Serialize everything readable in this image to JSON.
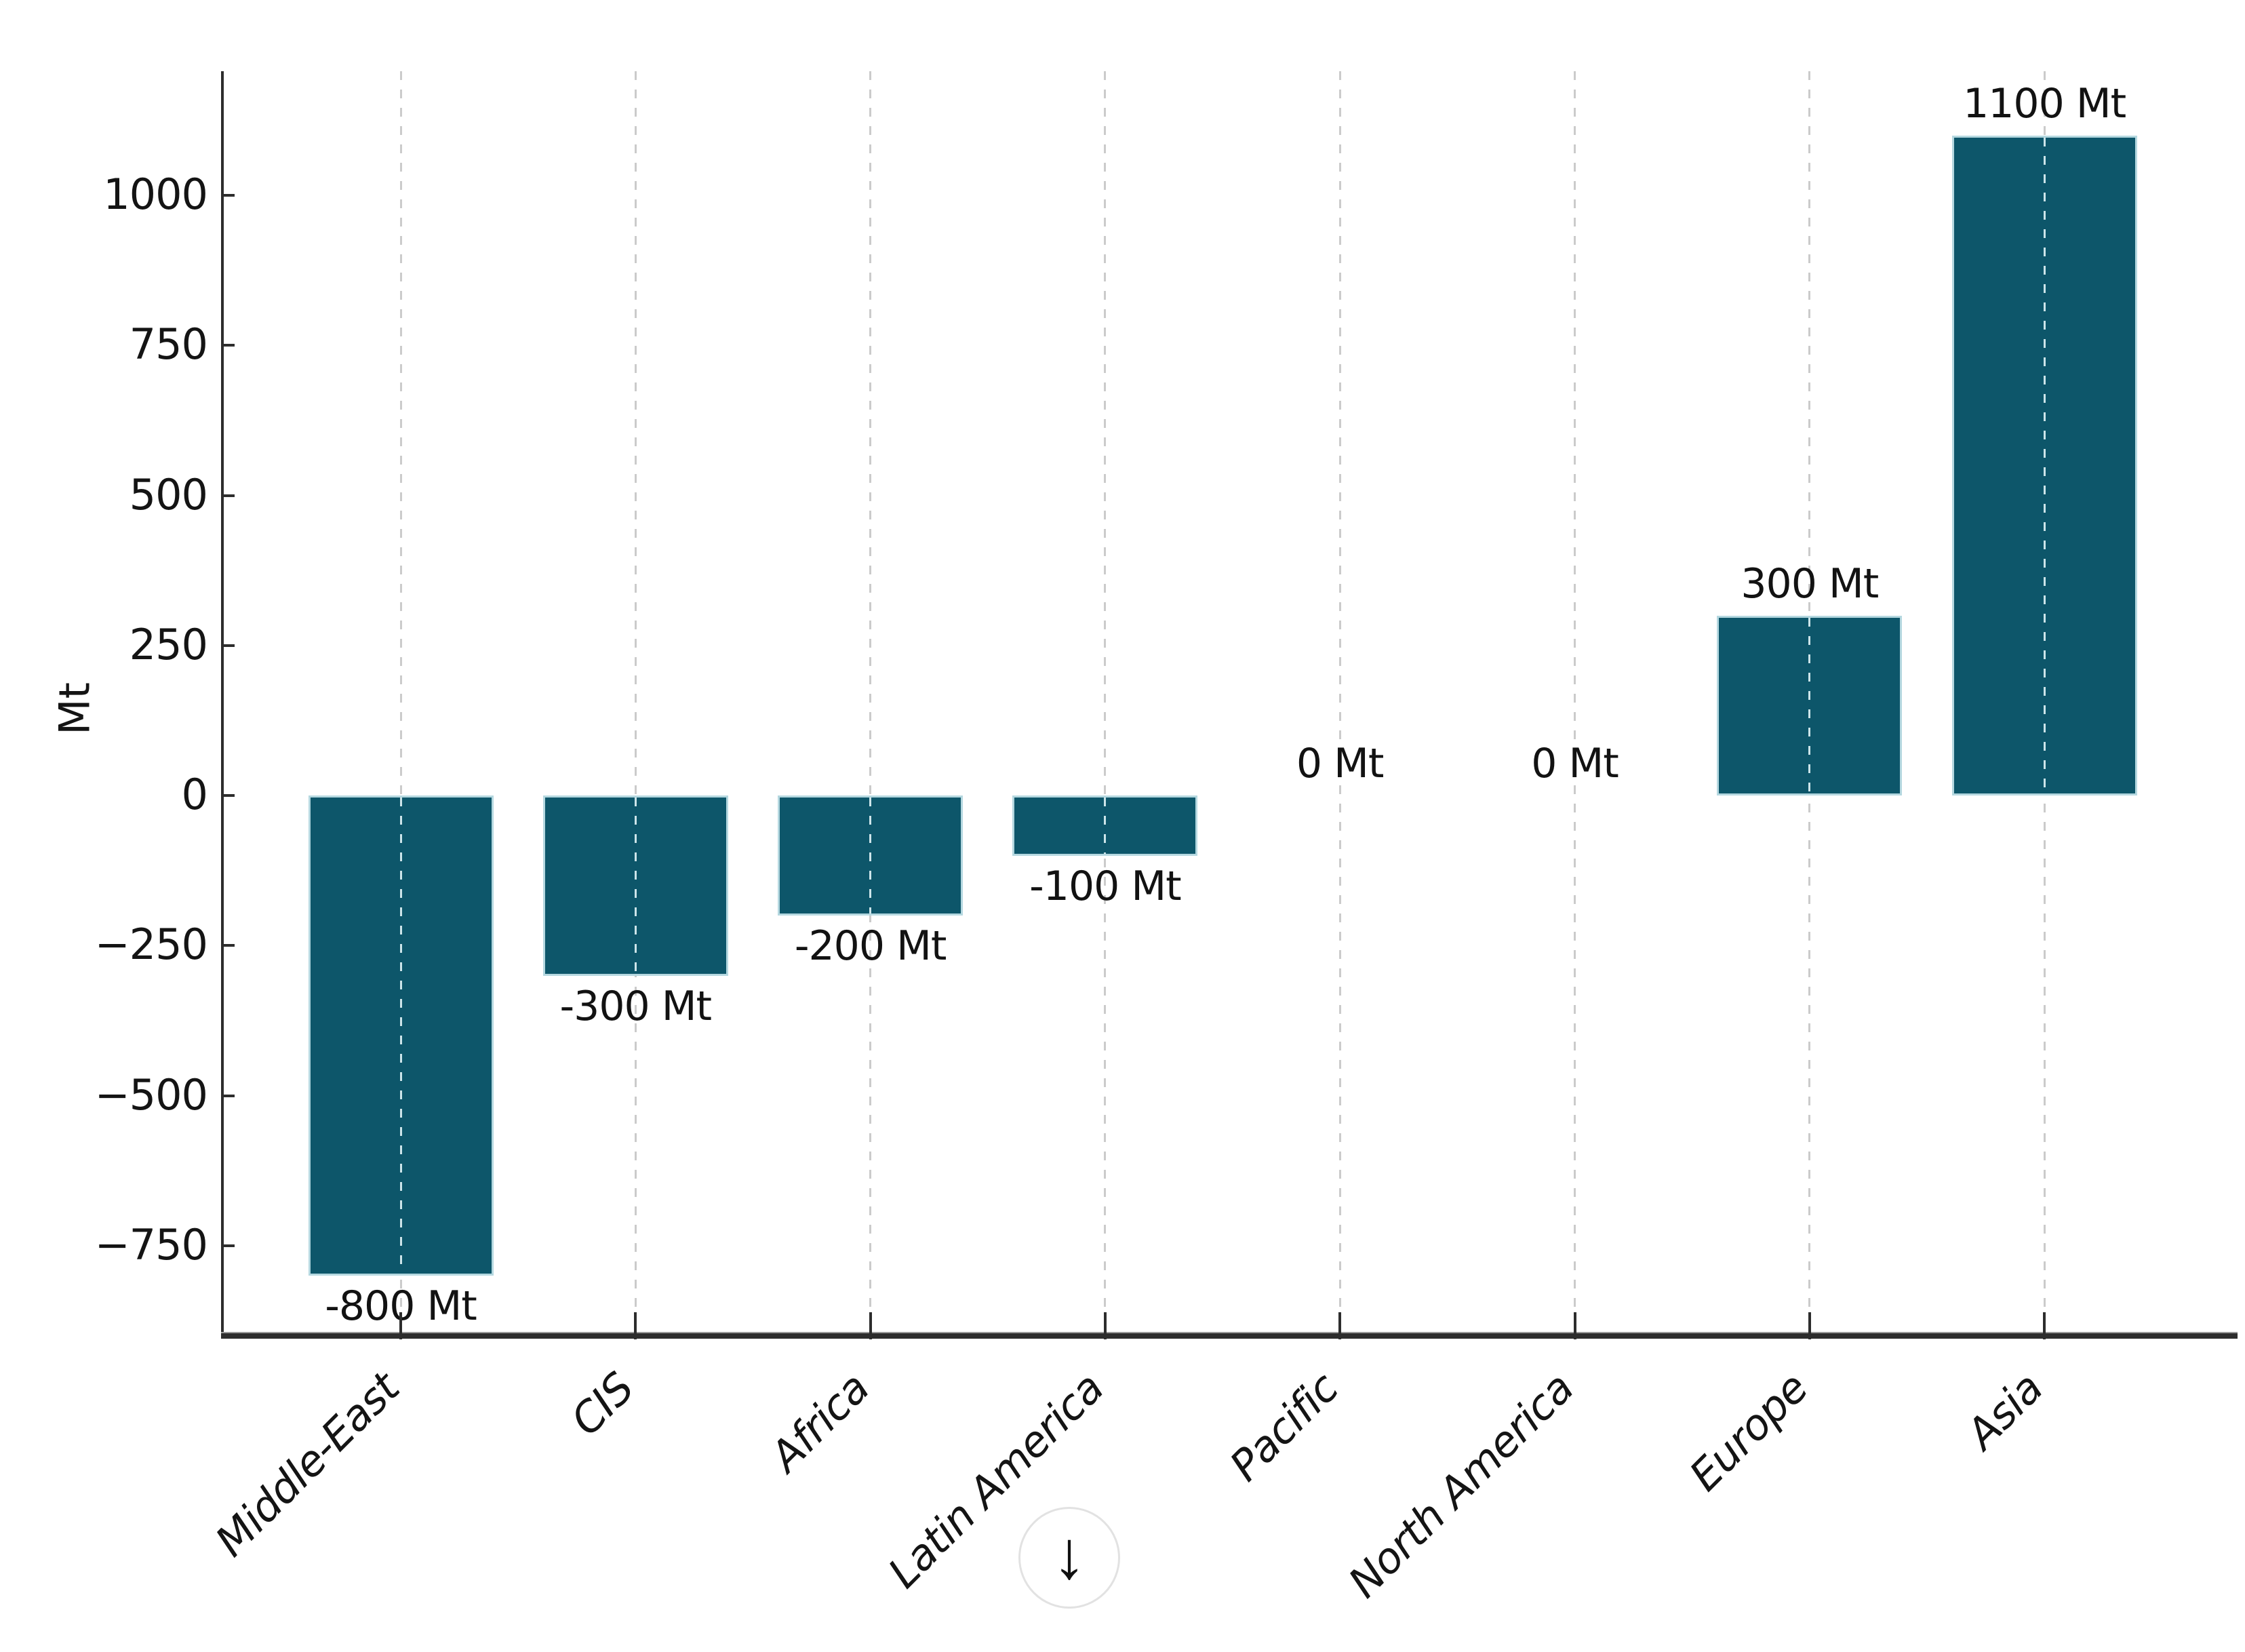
{
  "chart_data": {
    "type": "bar",
    "title": "",
    "xlabel": "",
    "ylabel": "Mt",
    "categories": [
      "Middle-East",
      "CIS",
      "Africa",
      "Latin America",
      "Pacific",
      "North America",
      "Europe",
      "Asia"
    ],
    "values": [
      -800,
      -300,
      -200,
      -100,
      0,
      0,
      300,
      1100
    ],
    "bar_labels": [
      "-800 Mt",
      "-300 Mt",
      "-200 Mt",
      "-100 Mt",
      "0 Mt",
      "0 Mt",
      "300 Mt",
      "1100 Mt"
    ],
    "yticks": [
      1000,
      750,
      500,
      250,
      0,
      -250,
      -500,
      -750
    ],
    "ytick_labels": [
      "1000",
      "750",
      "500",
      "250",
      "0",
      "−250",
      "−500",
      "−750"
    ],
    "ylim": [
      -894,
      1207
    ],
    "grid": "vertical-dashed-per-category",
    "legend_position": "none",
    "bar_color": "#0d566a",
    "bar_edge_color": "#b5d8e0",
    "gridline_color": "#cbcbcb",
    "axis_color": "#2d2d2d",
    "x_labels_rotation_deg": 45,
    "x_labels_style": "italic"
  },
  "controls": {
    "scroll_down_button": {
      "icon": "down-arrow-icon",
      "glyph": "↓"
    }
  }
}
